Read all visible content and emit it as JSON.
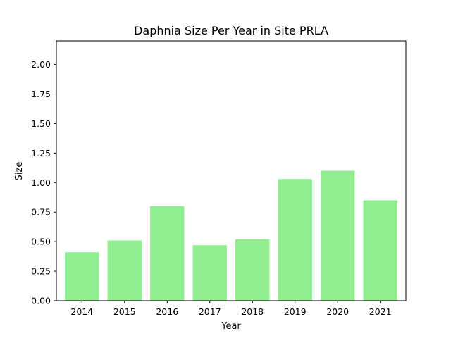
{
  "chart_data": {
    "type": "bar",
    "title": "Daphnia Size Per Year in Site PRLA",
    "xlabel": "Year",
    "ylabel": "Size",
    "categories": [
      "2014",
      "2015",
      "2016",
      "2017",
      "2018",
      "2019",
      "2020",
      "2021"
    ],
    "values": [
      0.41,
      0.51,
      0.8,
      0.47,
      0.52,
      1.03,
      1.1,
      0.85
    ],
    "ylim": [
      0,
      2.2
    ],
    "yticks": [
      "0.00",
      "0.25",
      "0.50",
      "0.75",
      "1.00",
      "1.25",
      "1.50",
      "1.75",
      "2.00"
    ],
    "bar_color": "#90ee90",
    "grid": false,
    "legend": "none"
  }
}
